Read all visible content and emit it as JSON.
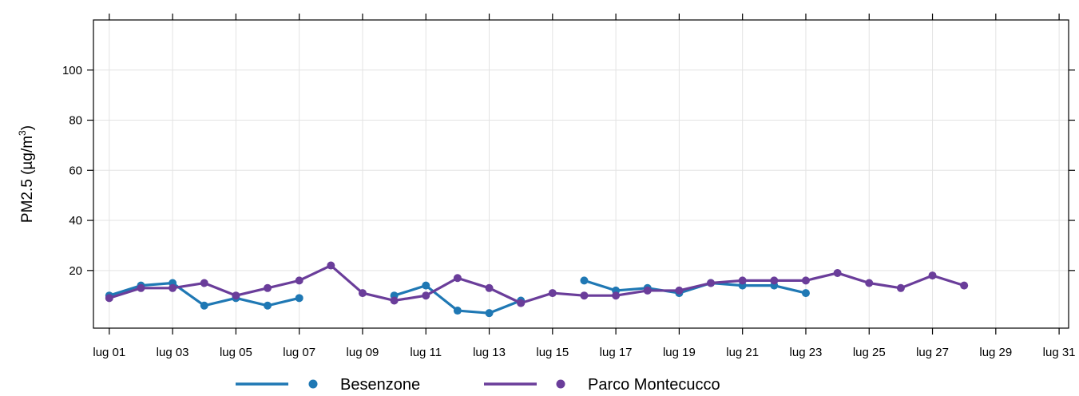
{
  "chart_data": {
    "type": "line",
    "ylabel": "PM2.5 (µg/m³)",
    "ylabel_main": "PM2.5 (",
    "ylabel_unit_mu": "µg/m",
    "ylabel_unit_sup": "3",
    "ylabel_close": ")",
    "xlim_day": [
      0.5,
      31.3
    ],
    "ylim": [
      -3,
      120
    ],
    "grid": true,
    "legend_position": "bottom",
    "x_ticks": [
      {
        "day": 1,
        "label": "lug 01"
      },
      {
        "day": 3,
        "label": "lug 03"
      },
      {
        "day": 5,
        "label": "lug 05"
      },
      {
        "day": 7,
        "label": "lug 07"
      },
      {
        "day": 9,
        "label": "lug 09"
      },
      {
        "day": 11,
        "label": "lug 11"
      },
      {
        "day": 13,
        "label": "lug 13"
      },
      {
        "day": 15,
        "label": "lug 15"
      },
      {
        "day": 17,
        "label": "lug 17"
      },
      {
        "day": 19,
        "label": "lug 19"
      },
      {
        "day": 21,
        "label": "lug 21"
      },
      {
        "day": 23,
        "label": "lug 23"
      },
      {
        "day": 25,
        "label": "lug 25"
      },
      {
        "day": 27,
        "label": "lug 27"
      },
      {
        "day": 29,
        "label": "lug 29"
      },
      {
        "day": 31,
        "label": "lug 31"
      }
    ],
    "y_ticks": [
      20,
      40,
      60,
      80,
      100
    ],
    "series": [
      {
        "name": "Besenzone",
        "color": "#1f78b4",
        "x": [
          1,
          2,
          3,
          4,
          5,
          6,
          7,
          8,
          9,
          10,
          11,
          12,
          13,
          14,
          15,
          16,
          17,
          18,
          19,
          20,
          21,
          22,
          23
        ],
        "values": [
          10,
          14,
          15,
          6,
          9,
          6,
          9,
          null,
          null,
          10,
          14,
          4,
          3,
          8,
          null,
          16,
          12,
          13,
          11,
          15,
          14,
          14,
          11
        ]
      },
      {
        "name": "Parco Montecucco",
        "color": "#6a3d9a",
        "x": [
          1,
          2,
          3,
          4,
          5,
          6,
          7,
          8,
          9,
          10,
          11,
          12,
          13,
          14,
          15,
          16,
          17,
          18,
          19,
          20,
          21,
          22,
          23,
          24,
          25,
          26,
          27,
          28
        ],
        "values": [
          9,
          13,
          13,
          15,
          10,
          13,
          16,
          22,
          11,
          8,
          10,
          17,
          13,
          7,
          11,
          10,
          10,
          12,
          12,
          15,
          16,
          16,
          16,
          19,
          15,
          13,
          18,
          14
        ]
      }
    ]
  }
}
